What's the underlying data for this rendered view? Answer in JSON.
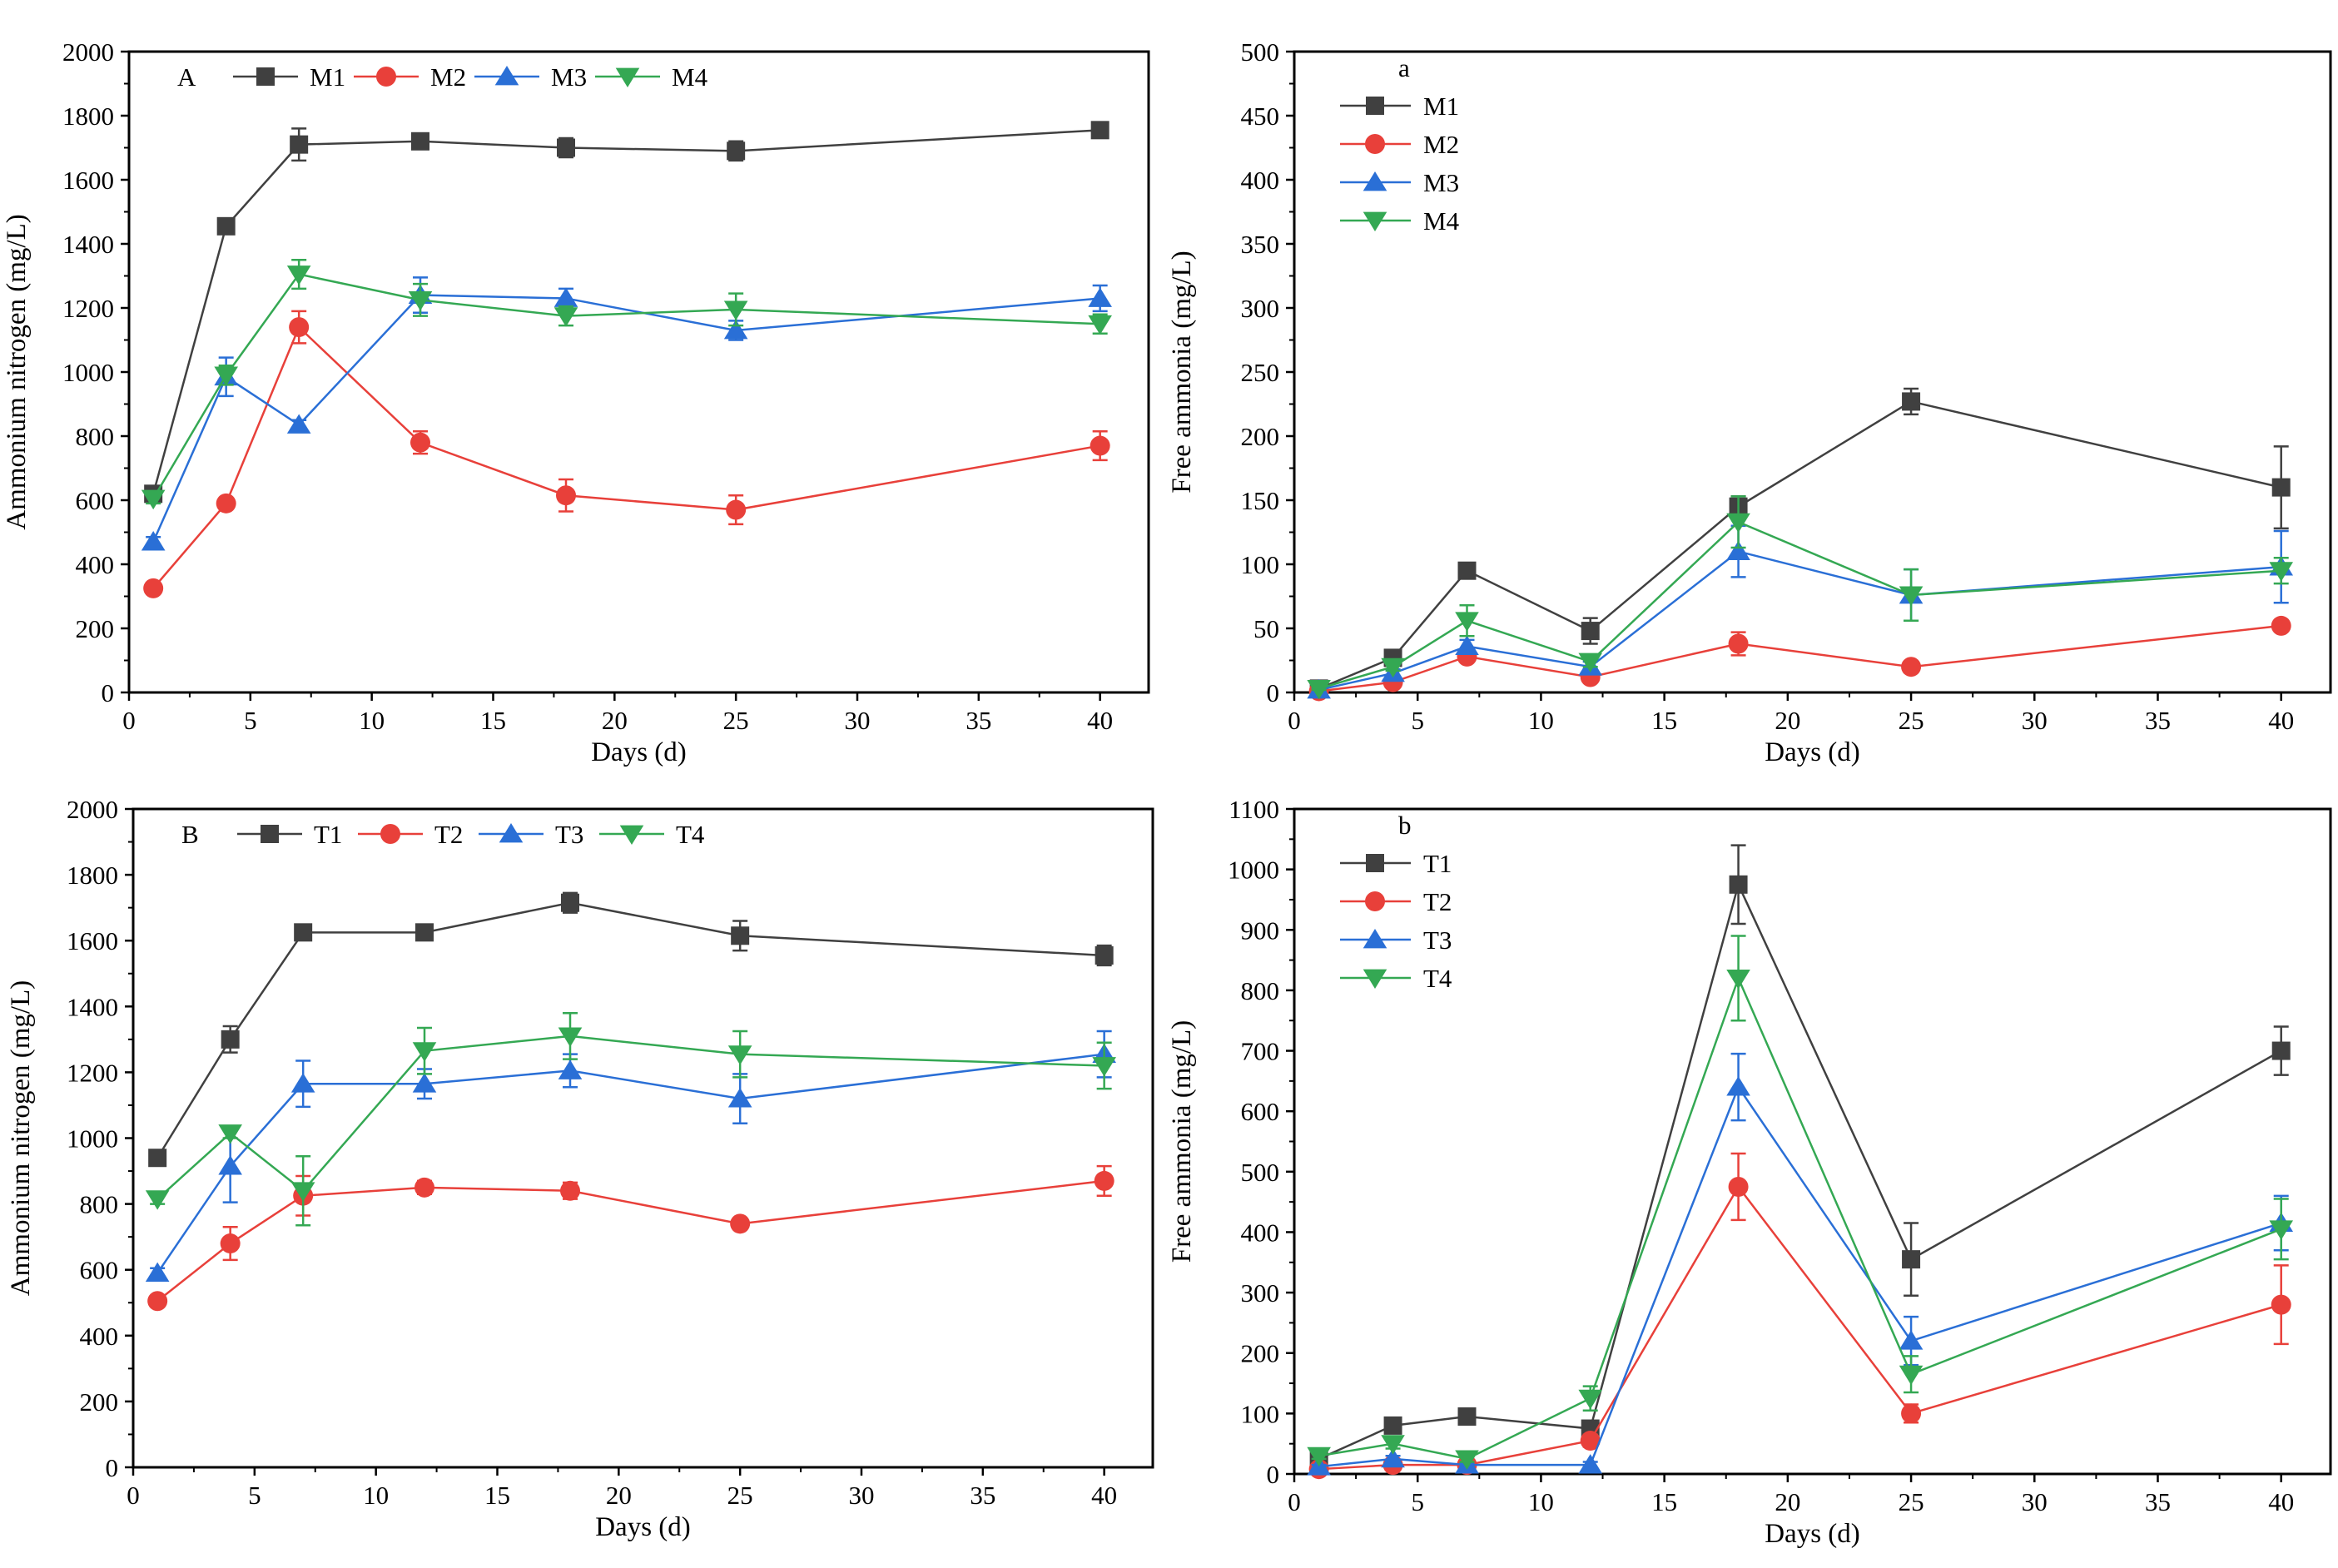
{
  "figure": {
    "panels": [
      "A",
      "a",
      "B",
      "b"
    ]
  },
  "chart_data": [
    {
      "id": "A",
      "panel_label": "A",
      "type": "line",
      "xlabel": "Days (d)",
      "ylabel": "Ammonium nitrogen (mg/L)",
      "xlim": [
        0,
        42
      ],
      "ylim": [
        0,
        2000
      ],
      "xticks": [
        0,
        5,
        10,
        15,
        20,
        25,
        30,
        35,
        40
      ],
      "yticks": [
        0,
        200,
        400,
        600,
        800,
        1000,
        1200,
        1400,
        1600,
        1800,
        2000
      ],
      "legend_position": "top-left-horizontal",
      "x": [
        1,
        4,
        7,
        12,
        18,
        25,
        40
      ],
      "series": [
        {
          "name": "M1",
          "color": "#404040",
          "marker": "square",
          "values": [
            620,
            1455,
            1710,
            1720,
            1700,
            1690,
            1755
          ],
          "errors": [
            15,
            20,
            50,
            15,
            30,
            30,
            15
          ]
        },
        {
          "name": "M2",
          "color": "#e8403a",
          "marker": "circle",
          "values": [
            325,
            590,
            1140,
            780,
            615,
            570,
            770
          ],
          "errors": [
            15,
            15,
            50,
            35,
            50,
            45,
            45
          ]
        },
        {
          "name": "M3",
          "color": "#2a6fd6",
          "marker": "triangle-up",
          "values": [
            470,
            985,
            835,
            1240,
            1230,
            1130,
            1230
          ],
          "errors": [
            15,
            60,
            15,
            55,
            30,
            30,
            40
          ]
        },
        {
          "name": "M4",
          "color": "#34a853",
          "marker": "triangle-down",
          "values": [
            605,
            990,
            1305,
            1225,
            1175,
            1195,
            1150
          ],
          "errors": [
            15,
            30,
            45,
            50,
            30,
            50,
            30
          ]
        }
      ]
    },
    {
      "id": "a",
      "panel_label": "a",
      "type": "line",
      "xlabel": "Days (d)",
      "ylabel": "Free ammonia (mg/L)",
      "xlim": [
        0,
        42
      ],
      "ylim": [
        0,
        500
      ],
      "xticks": [
        0,
        5,
        10,
        15,
        20,
        25,
        30,
        35,
        40
      ],
      "yticks": [
        0,
        50,
        100,
        150,
        200,
        250,
        300,
        350,
        400,
        450,
        500
      ],
      "legend_position": "top-left-vertical",
      "x": [
        1,
        4,
        7,
        12,
        18,
        25,
        40
      ],
      "series": [
        {
          "name": "M1",
          "color": "#404040",
          "marker": "square",
          "values": [
            3,
            27,
            95,
            48,
            145,
            227,
            160
          ],
          "errors": [
            2,
            3,
            4,
            10,
            8,
            10,
            32
          ]
        },
        {
          "name": "M2",
          "color": "#e8403a",
          "marker": "circle",
          "values": [
            1,
            8,
            28,
            12,
            38,
            20,
            52
          ],
          "errors": [
            1,
            2,
            3,
            3,
            9,
            3,
            3
          ]
        },
        {
          "name": "M3",
          "color": "#2a6fd6",
          "marker": "triangle-up",
          "values": [
            2,
            15,
            36,
            20,
            110,
            76,
            98
          ],
          "errors": [
            1,
            3,
            5,
            4,
            20,
            20,
            28
          ]
        },
        {
          "name": "M4",
          "color": "#34a853",
          "marker": "triangle-down",
          "values": [
            3,
            20,
            56,
            24,
            133,
            76,
            95
          ],
          "errors": [
            1,
            3,
            12,
            4,
            20,
            20,
            10
          ]
        }
      ]
    },
    {
      "id": "B",
      "panel_label": "B",
      "type": "line",
      "xlabel": "Days (d)",
      "ylabel": "Ammonium nitrogen (mg/L)",
      "xlim": [
        0,
        42
      ],
      "ylim": [
        0,
        2000
      ],
      "xticks": [
        0,
        5,
        10,
        15,
        20,
        25,
        30,
        35,
        40
      ],
      "yticks": [
        0,
        200,
        400,
        600,
        800,
        1000,
        1200,
        1400,
        1600,
        1800,
        2000
      ],
      "legend_position": "top-left-horizontal",
      "x": [
        1,
        4,
        7,
        12,
        18,
        25,
        40
      ],
      "series": [
        {
          "name": "T1",
          "color": "#404040",
          "marker": "square",
          "values": [
            940,
            1300,
            1625,
            1625,
            1715,
            1615,
            1555
          ],
          "errors": [
            15,
            40,
            20,
            15,
            30,
            45,
            30
          ]
        },
        {
          "name": "T2",
          "color": "#e8403a",
          "marker": "circle",
          "values": [
            505,
            680,
            825,
            850,
            840,
            740,
            870
          ],
          "errors": [
            15,
            50,
            60,
            20,
            25,
            15,
            45
          ]
        },
        {
          "name": "T3",
          "color": "#2a6fd6",
          "marker": "triangle-up",
          "values": [
            590,
            915,
            1165,
            1165,
            1205,
            1120,
            1255
          ],
          "errors": [
            15,
            110,
            70,
            45,
            50,
            75,
            70
          ]
        },
        {
          "name": "T4",
          "color": "#34a853",
          "marker": "triangle-down",
          "values": [
            815,
            1015,
            840,
            1265,
            1310,
            1255,
            1220
          ],
          "errors": [
            15,
            15,
            105,
            70,
            70,
            70,
            70
          ]
        }
      ]
    },
    {
      "id": "b",
      "panel_label": "b",
      "type": "line",
      "xlabel": "Days (d)",
      "ylabel": "Free ammonia (mg/L)",
      "xlim": [
        0,
        42
      ],
      "ylim": [
        0,
        1100
      ],
      "xticks": [
        0,
        5,
        10,
        15,
        20,
        25,
        30,
        35,
        40
      ],
      "yticks": [
        0,
        100,
        200,
        300,
        400,
        500,
        600,
        700,
        800,
        900,
        1000,
        1100
      ],
      "legend_position": "top-left-vertical",
      "x": [
        1,
        4,
        7,
        12,
        18,
        25,
        40
      ],
      "series": [
        {
          "name": "T1",
          "color": "#404040",
          "marker": "square",
          "values": [
            25,
            80,
            95,
            75,
            975,
            355,
            700
          ],
          "errors": [
            5,
            8,
            8,
            10,
            65,
            60,
            40
          ]
        },
        {
          "name": "T2",
          "color": "#e8403a",
          "marker": "circle",
          "values": [
            8,
            15,
            15,
            55,
            475,
            100,
            280
          ],
          "errors": [
            3,
            5,
            3,
            10,
            55,
            15,
            65
          ]
        },
        {
          "name": "T3",
          "color": "#2a6fd6",
          "marker": "triangle-up",
          "values": [
            12,
            25,
            15,
            15,
            640,
            220,
            415
          ],
          "errors": [
            3,
            5,
            3,
            5,
            55,
            40,
            45
          ]
        },
        {
          "name": "T4",
          "color": "#34a853",
          "marker": "triangle-down",
          "values": [
            30,
            50,
            25,
            125,
            820,
            165,
            405
          ],
          "errors": [
            5,
            8,
            5,
            20,
            70,
            30,
            50
          ]
        }
      ]
    }
  ]
}
